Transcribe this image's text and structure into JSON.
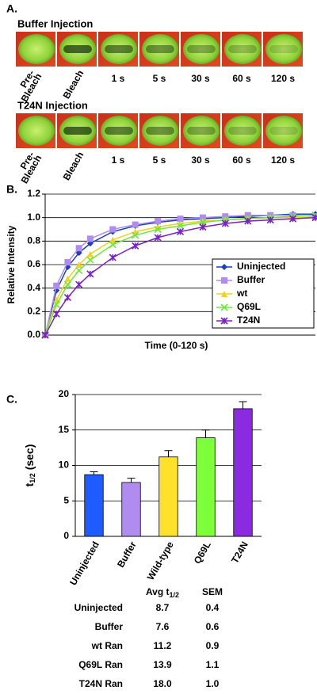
{
  "panel_a": {
    "label": "A.",
    "rows": [
      {
        "title": "Buffer Injection",
        "labels": [
          [
            "Pre-",
            "Bleach"
          ],
          "Bleach",
          "1 s",
          "5 s",
          "30 s",
          "60 s",
          "120 s"
        ]
      },
      {
        "title": "T24N Injection",
        "labels": [
          [
            "Pre-",
            "Bleach"
          ],
          "Bleach",
          "1 s",
          "5 s",
          "30 s",
          "60 s",
          "120 s"
        ]
      }
    ]
  },
  "chart_data": [
    {
      "type": "line",
      "panel_label": "B.",
      "y_label": "Relative Intensity",
      "x_label": "Time (0-120 s)",
      "x": [
        0,
        5,
        10,
        15,
        20,
        30,
        40,
        50,
        60,
        70,
        80,
        90,
        100,
        110,
        120
      ],
      "xlim": [
        0,
        120
      ],
      "ylim": [
        0,
        1.2
      ],
      "yticks": [
        {
          "value": 0,
          "label": "0.0"
        },
        0.2,
        0.4,
        0.6,
        0.8,
        {
          "value": 1,
          "label": "1.0"
        },
        1.2
      ],
      "grid": true,
      "legend": "right",
      "series": [
        {
          "name": "Uninjected",
          "color": "#1a3fbf",
          "marker": "diamond",
          "values": [
            0,
            0.38,
            0.58,
            0.7,
            0.78,
            0.88,
            0.93,
            0.96,
            0.98,
            0.99,
            1.0,
            1.01,
            1.02,
            1.03,
            1.03
          ]
        },
        {
          "name": "Buffer",
          "color": "#b08cf0",
          "marker": "square",
          "values": [
            0,
            0.42,
            0.62,
            0.74,
            0.82,
            0.9,
            0.94,
            0.97,
            0.99,
            1.0,
            1.01,
            1.02,
            1.02,
            1.02,
            1.01
          ]
        },
        {
          "name": "wt",
          "color": "#f2d21a",
          "marker": "triangle",
          "values": [
            0,
            0.3,
            0.48,
            0.6,
            0.69,
            0.81,
            0.88,
            0.92,
            0.95,
            0.97,
            0.98,
            0.99,
            1.0,
            1.0,
            1.0
          ]
        },
        {
          "name": "Q69L",
          "color": "#6ee83a",
          "marker": "x",
          "values": [
            0,
            0.26,
            0.43,
            0.55,
            0.64,
            0.77,
            0.85,
            0.9,
            0.93,
            0.96,
            0.98,
            0.99,
            1.0,
            1.01,
            1.02
          ]
        },
        {
          "name": "T24N",
          "color": "#7a1fcc",
          "marker": "star",
          "values": [
            0,
            0.18,
            0.32,
            0.43,
            0.52,
            0.66,
            0.76,
            0.83,
            0.88,
            0.92,
            0.95,
            0.97,
            0.98,
            0.99,
            1.0
          ]
        }
      ]
    },
    {
      "type": "bar",
      "panel_label": "C.",
      "y_label": {
        "main": "t",
        "sub": "1/2",
        "rest": " (sec)"
      },
      "categories": [
        "Uninjected",
        "Buffer",
        "Wild-type",
        "Q69L",
        "T24N"
      ],
      "values": [
        8.7,
        7.6,
        11.2,
        13.9,
        18.0
      ],
      "errors": [
        0.4,
        0.6,
        0.9,
        1.1,
        1.0
      ],
      "colors": [
        "#1f5cff",
        "#b08cf0",
        "#ffe02a",
        "#7dff3a",
        "#8a2be2"
      ],
      "ylim": [
        0,
        20
      ],
      "yticks": [
        0,
        5,
        10,
        15,
        20
      ],
      "grid": true
    }
  ],
  "table": {
    "header": {
      "avg": [
        "Avg t",
        "1/2"
      ],
      "sem": "SEM"
    },
    "rows": [
      [
        "Uninjected",
        "8.7",
        "0.4"
      ],
      [
        "Buffer",
        "7.6",
        "0.6"
      ],
      [
        "wt Ran",
        "11.2",
        "0.9"
      ],
      [
        "Q69L Ran",
        "13.9",
        "1.1"
      ],
      [
        "T24N Ran",
        "18.0",
        "1.0"
      ]
    ]
  }
}
